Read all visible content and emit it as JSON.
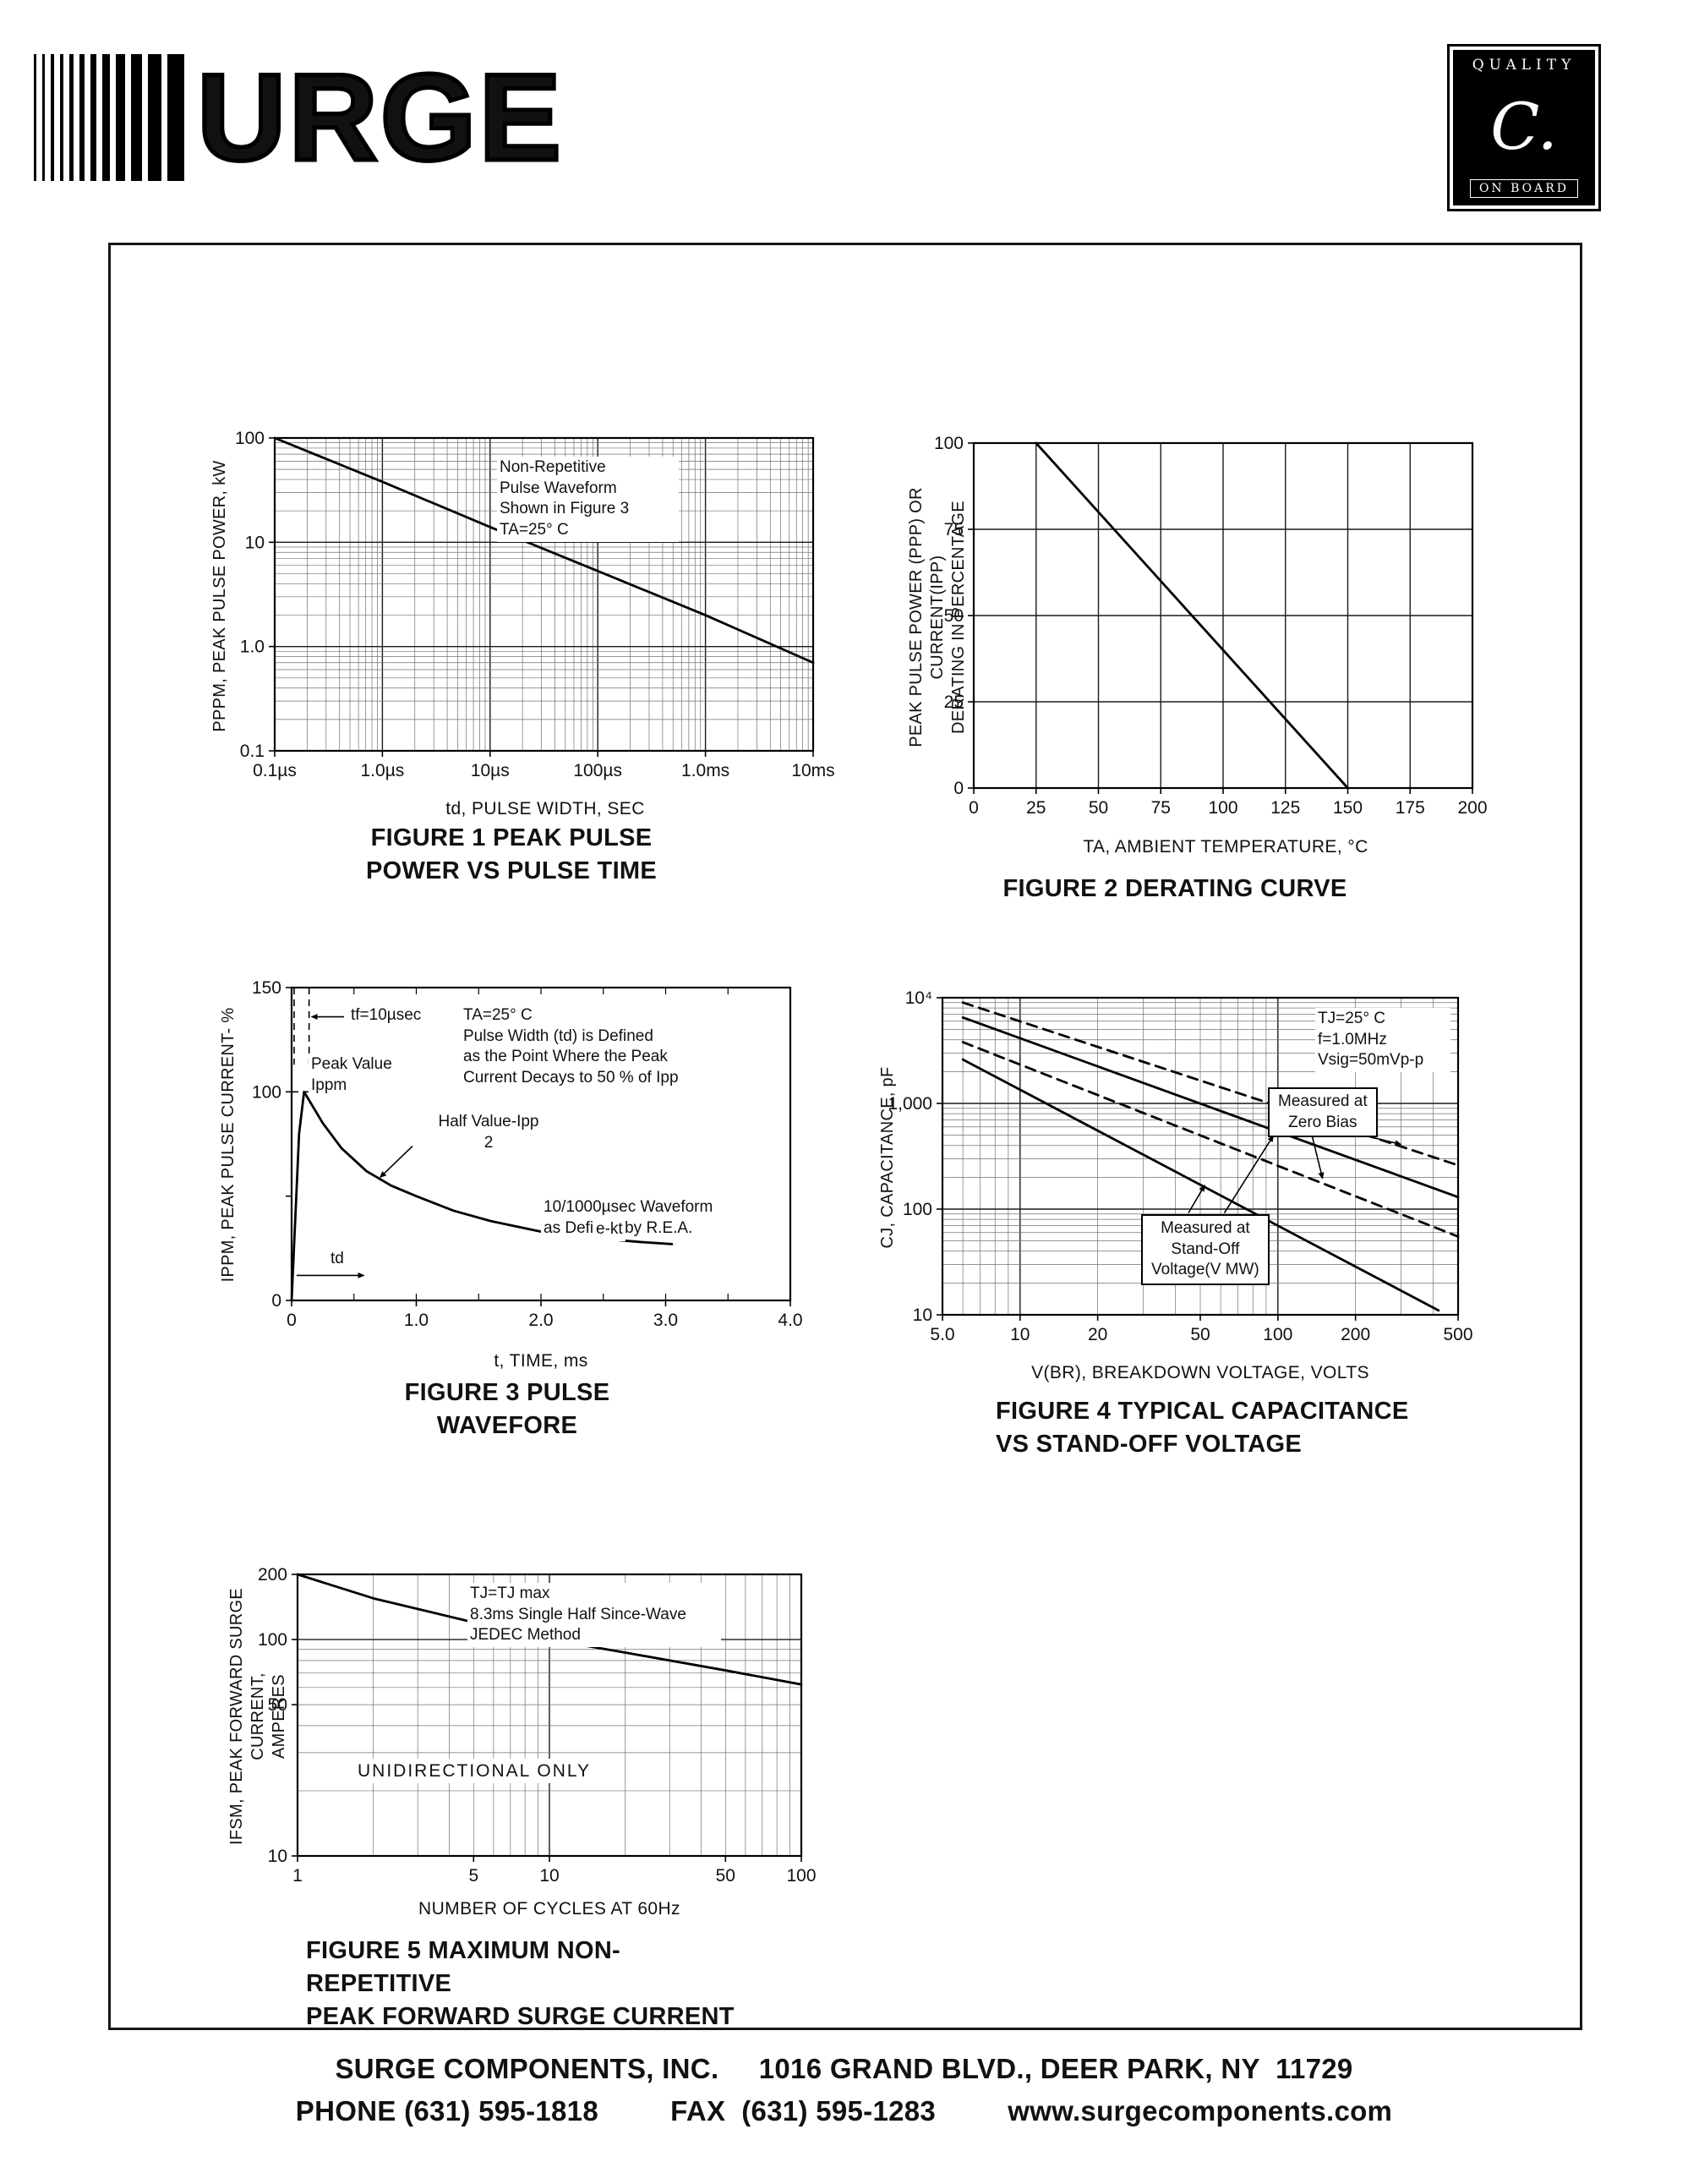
{
  "header": {
    "logo_text": "URGE",
    "quality_badge": {
      "top": "QUALITY",
      "middle": "C.",
      "bottom": "ON BOARD"
    }
  },
  "footer": {
    "line1": "SURGE COMPONENTS, INC.     1016 GRAND BLVD., DEER PARK, NY  11729",
    "line2": "PHONE (631) 595-1818         FAX  (631) 595-1283         www.surgecomponents.com"
  },
  "figures": {
    "fig1": {
      "caption": "FIGURE 1 PEAK PULSE\nPOWER VS PULSE TIME",
      "x_title": "td, PULSE WIDTH, SEC",
      "y_title": "PPPM, PEAK PULSE POWER, kW",
      "note": "Non-Repetitive\nPulse Waveform\nShown in Figure 3\nTA=25° C"
    },
    "fig2": {
      "caption": "FIGURE 2 DERATING CURVE",
      "x_title": "TA, AMBIENT  TEMPERATURE, °C",
      "y_title": "PEAK PULSE POWER (PPP) OR CURRENT(IPP)\nDERATING IN PERCENTAGE"
    },
    "fig3": {
      "caption": "FIGURE 3 PULSE WAVEFORE",
      "x_title": "t, TIME, ms",
      "y_title": "IPPM, PEAK PULSE CURRENT- %",
      "tf_label": "tf=10µsec",
      "peak_label": "Peak Value\nIppm",
      "half_label": "Half Value-Ipp\n2",
      "definition_note": "TA=25° C\nPulse Width (td) is Defined\nas the Point Where the Peak\nCurrent Decays to 50 % of Ipp",
      "waveform_note": "10/1000µsec Waveform\nas Defined by R.E.A.",
      "ekt_label": "e-kt",
      "td_label": "td"
    },
    "fig4": {
      "caption": "FIGURE 4 TYPICAL CAPACITANCE\nVS STAND-OFF VOLTAGE",
      "x_title": "V(BR), BREAKDOWN  VOLTAGE, VOLTS",
      "y_title": "CJ, CAPACITANCE, pF",
      "conditions": "TJ=25° C\nf=1.0MHz\nVsig=50mVp-p",
      "zero_bias_label": "Measured at\nZero Bias",
      "standoff_label": "Measured at\nStand-Off\nVoltage(V MW)"
    },
    "fig5": {
      "caption": "FIGURE 5 MAXIMUM NON-REPETITIVE\nPEAK FORWARD SURGE CURRENT",
      "x_title": "NUMBER  OF  CYCLES  AT  60Hz",
      "y_title": "IFSM, PEAK FORWARD SURGE CURRENT,\nAMPERES",
      "conditions": "TJ=TJ max\n8.3ms Single Half Since-Wave\nJEDEC Method",
      "unidirectional": "UNIDIRECTIONAL ONLY"
    }
  },
  "chart_data": [
    {
      "id": "fig1",
      "type": "line",
      "title": "FIGURE 1 PEAK PULSE POWER VS PULSE TIME",
      "x": {
        "label": "td, PULSE WIDTH, SEC",
        "scale": "log",
        "domain": [
          1e-07,
          0.01
        ],
        "ticks": [
          {
            "v": 1e-07,
            "t": "0.1µs"
          },
          {
            "v": 1e-06,
            "t": "1.0µs"
          },
          {
            "v": 1e-05,
            "t": "10µs"
          },
          {
            "v": 0.0001,
            "t": "100µs"
          },
          {
            "v": 0.001,
            "t": "1.0ms"
          },
          {
            "v": 0.01,
            "t": "10ms"
          }
        ]
      },
      "y": {
        "label": "PPPM, PEAK PULSE POWER, kW",
        "scale": "log",
        "domain": [
          0.1,
          100
        ],
        "ticks": [
          {
            "v": 0.1,
            "t": "0.1"
          },
          {
            "v": 1,
            "t": "1.0"
          },
          {
            "v": 10,
            "t": "10"
          },
          {
            "v": 100,
            "t": "100"
          }
        ]
      },
      "series": [
        {
          "name": "peak-pulse-power",
          "dash": false,
          "points": [
            [
              1e-07,
              100
            ],
            [
              1e-06,
              38
            ],
            [
              1e-05,
              14
            ],
            [
              0.0001,
              5.3
            ],
            [
              0.001,
              2.0
            ],
            [
              0.01,
              0.7
            ]
          ]
        }
      ],
      "annotations": [
        "Non-Repetitive Pulse Waveform Shown in Figure 3",
        "TA=25° C"
      ],
      "layout": {
        "size": [
          760,
          510
        ],
        "margins": [
          85,
          63,
          38,
          77
        ],
        "grid": "on"
      }
    },
    {
      "id": "fig2",
      "type": "line",
      "title": "FIGURE 2 DERATING CURVE",
      "x": {
        "label": "TA, AMBIENT TEMPERATURE, °C",
        "scale": "linear",
        "domain": [
          0,
          200
        ],
        "grid_step": 25,
        "ticks": [
          {
            "v": 0,
            "t": "0"
          },
          {
            "v": 25,
            "t": "25"
          },
          {
            "v": 50,
            "t": "50"
          },
          {
            "v": 75,
            "t": "75"
          },
          {
            "v": 100,
            "t": "100"
          },
          {
            "v": 125,
            "t": "125"
          },
          {
            "v": 150,
            "t": "150"
          },
          {
            "v": 175,
            "t": "175"
          },
          {
            "v": 200,
            "t": "200"
          }
        ]
      },
      "y": {
        "label": "PEAK PULSE POWER (PPP) OR CURRENT(IPP) DERATING IN PERCENTAGE",
        "scale": "linear",
        "domain": [
          0,
          100
        ],
        "grid_step": 25,
        "ticks": [
          {
            "v": 0,
            "t": "0"
          },
          {
            "v": 25,
            "t": "25"
          },
          {
            "v": 50,
            "t": "50"
          },
          {
            "v": 75,
            "t": "75"
          },
          {
            "v": 100,
            "t": "100"
          }
        ]
      },
      "series": [
        {
          "name": "derating",
          "dash": false,
          "points": [
            [
              25,
              100
            ],
            [
              150,
              0
            ]
          ]
        }
      ],
      "layout": {
        "size": [
          770,
          560
        ],
        "margins": [
          87,
          64,
          93,
          88
        ],
        "grid": "on"
      }
    },
    {
      "id": "fig3",
      "type": "line",
      "title": "FIGURE 3 PULSE WAVEFORE",
      "x": {
        "label": "t, TIME, ms",
        "scale": "linear",
        "domain": [
          0,
          4
        ],
        "minor_step": 0.5,
        "ticks": [
          {
            "v": 0,
            "t": "0"
          },
          {
            "v": 1,
            "t": "1.0"
          },
          {
            "v": 2,
            "t": "2.0"
          },
          {
            "v": 3,
            "t": "3.0"
          },
          {
            "v": 4,
            "t": "4.0"
          }
        ]
      },
      "y": {
        "label": "IPPM, PEAK PULSE CURRENT- %",
        "scale": "linear",
        "domain": [
          0,
          150
        ],
        "ticks": [
          {
            "v": 0,
            "t": "0"
          },
          {
            "v": 50,
            "t": ""
          },
          {
            "v": 100,
            "t": "100"
          },
          {
            "v": 150,
            "t": "150"
          }
        ]
      },
      "series": [
        {
          "name": "pulse-waveform",
          "dash": false,
          "points": [
            [
              0,
              0
            ],
            [
              0.03,
              40
            ],
            [
              0.06,
              80
            ],
            [
              0.1,
              100
            ],
            [
              0.16,
              94
            ],
            [
              0.25,
              85
            ],
            [
              0.4,
              73
            ],
            [
              0.6,
              62
            ],
            [
              0.8,
              55
            ],
            [
              1.0,
              50
            ],
            [
              1.3,
              43
            ],
            [
              1.6,
              38
            ],
            [
              2.0,
              33
            ],
            [
              2.4,
              30
            ],
            [
              2.8,
              28
            ],
            [
              3.05,
              27
            ]
          ]
        }
      ],
      "extra_lines": [
        {
          "p": [
            [
              0.02,
              150
            ],
            [
              0.02,
              113
            ]
          ],
          "dash": true
        },
        {
          "p": [
            [
              0.14,
              150
            ],
            [
              0.14,
              113
            ]
          ],
          "dash": true
        },
        {
          "p": [
            [
              0.42,
              136
            ],
            [
              0.16,
              136
            ]
          ],
          "arrow": "end"
        },
        {
          "p": [
            [
              0,
              100
            ],
            [
              0.14,
              100
            ]
          ],
          "dash": true
        },
        {
          "p": [
            [
              0.42,
              110
            ],
            [
              0.15,
              102
            ]
          ],
          "arrow": "end"
        },
        {
          "p": [
            [
              0.97,
              74
            ],
            [
              0.71,
              59
            ]
          ],
          "arrow": "end"
        },
        {
          "p": [
            [
              0.04,
              12
            ],
            [
              0.58,
              12
            ]
          ],
          "arrow": "end"
        }
      ],
      "annotations": [
        "tf=10µsec",
        "Peak Value Ippm",
        "Half Value-Ipp/2",
        "TA=25° C Pulse Width (td) is Defined as the Point Where the Peak Current Decays to 50 % of Ipp",
        "10/1000µsec Waveform as Defined by R.E.A.",
        "e-kt",
        "td"
      ],
      "layout": {
        "size": [
          760,
          500
        ],
        "margins": [
          90,
          63,
          80,
          67
        ],
        "grid": "none"
      }
    },
    {
      "id": "fig4",
      "type": "line",
      "title": "FIGURE 4 TYPICAL CAPACITANCE VS STAND-OFF VOLTAGE",
      "x": {
        "label": "V(BR), BREAKDOWN VOLTAGE, VOLTS",
        "scale": "log",
        "domain": [
          5,
          500
        ],
        "ticks": [
          {
            "v": 5,
            "t": "5.0"
          },
          {
            "v": 10,
            "t": "10"
          },
          {
            "v": 20,
            "t": "20"
          },
          {
            "v": 50,
            "t": "50"
          },
          {
            "v": 100,
            "t": "100"
          },
          {
            "v": 200,
            "t": "200"
          },
          {
            "v": 500,
            "t": "500"
          }
        ]
      },
      "y": {
        "label": "CJ, CAPACITANCE, pF",
        "scale": "log",
        "domain": [
          10,
          10000
        ],
        "ticks": [
          {
            "v": 10,
            "t": "10"
          },
          {
            "v": 100,
            "t": "100"
          },
          {
            "v": 1000,
            "t": "1,000"
          },
          {
            "v": 10000,
            "t": "10⁴"
          }
        ]
      },
      "series": [
        {
          "name": "measured-at-zero-bias-upper",
          "dash": true,
          "points": [
            [
              6,
              9000
            ],
            [
              500,
              260
            ]
          ]
        },
        {
          "name": "measured-at-standoff-upper",
          "dash": false,
          "points": [
            [
              6,
              6500
            ],
            [
              500,
              130
            ]
          ]
        },
        {
          "name": "measured-at-zero-bias-lower",
          "dash": true,
          "points": [
            [
              6,
              3800
            ],
            [
              500,
              55
            ]
          ]
        },
        {
          "name": "measured-at-standoff-lower",
          "dash": false,
          "points": [
            [
              6,
              2600
            ],
            [
              420,
              11
            ]
          ]
        }
      ],
      "extra_lines": [
        {
          "p": [
            [
              200,
              520
            ],
            [
              300,
              410
            ]
          ],
          "arrow": "end"
        },
        {
          "p": [
            [
              135,
              520
            ],
            [
              149,
              195
            ]
          ],
          "arrow": "end"
        },
        {
          "p": [
            [
              45,
              92
            ],
            [
              52,
              168
            ]
          ],
          "arrow": "end"
        },
        {
          "p": [
            [
              62,
              92
            ],
            [
              96,
              495
            ]
          ],
          "arrow": "end"
        }
      ],
      "annotations": [
        "TJ=25° C f=1.0MHz Vsig=50mVp-p",
        "Measured at Zero Bias",
        "Measured at Stand-Off Voltage(V MW)"
      ],
      "layout": {
        "size": [
          790,
          520
        ],
        "margins": [
          85,
          65,
          95,
          80
        ],
        "grid": "on"
      }
    },
    {
      "id": "fig5",
      "type": "line",
      "title": "FIGURE 5 MAXIMUM NON-REPETITIVE PEAK FORWARD SURGE CURRENT",
      "x": {
        "label": "NUMBER OF CYCLES AT 60Hz",
        "scale": "log",
        "domain": [
          1,
          100
        ],
        "ticks": [
          {
            "v": 1,
            "t": "1"
          },
          {
            "v": 5,
            "t": "5"
          },
          {
            "v": 10,
            "t": "10"
          },
          {
            "v": 50,
            "t": "50"
          },
          {
            "v": 100,
            "t": "100"
          }
        ]
      },
      "y": {
        "label": "IFSM, PEAK FORWARD SURGE CURRENT, AMPERES",
        "scale": "log",
        "domain": [
          10,
          200
        ],
        "ticks": [
          {
            "v": 10,
            "t": "10"
          },
          {
            "v": 50,
            "t": "50"
          },
          {
            "v": 100,
            "t": "100"
          },
          {
            "v": 200,
            "t": "200"
          }
        ]
      },
      "series": [
        {
          "name": "surge-current",
          "dash": false,
          "points": [
            [
              1,
              200
            ],
            [
              2,
              155
            ],
            [
              5,
              120
            ],
            [
              10,
              100
            ],
            [
              20,
              87
            ],
            [
              50,
              72
            ],
            [
              100,
              62
            ]
          ]
        }
      ],
      "annotations": [
        "TJ=TJ max 8.3ms Single Half Since-Wave JEDEC Method",
        "UNIDIRECTIONAL ONLY"
      ],
      "layout": {
        "size": [
          770,
          470
        ],
        "margins": [
          87,
          62,
          87,
          75
        ],
        "grid": "on"
      }
    }
  ]
}
